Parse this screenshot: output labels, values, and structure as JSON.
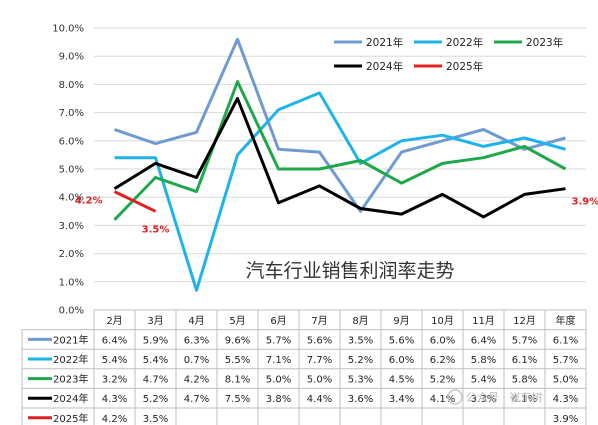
{
  "chart_data": {
    "type": "line",
    "title": "汽车行业销售利润率走势",
    "categories": [
      "2月",
      "3月",
      "4月",
      "5月",
      "6月",
      "7月",
      "8月",
      "9月",
      "10月",
      "11月",
      "12月",
      "年度"
    ],
    "ylim": [
      0,
      10
    ],
    "y_ticks": [
      "0.0%",
      "1.0%",
      "2.0%",
      "3.0%",
      "4.0%",
      "5.0%",
      "6.0%",
      "7.0%",
      "8.0%",
      "9.0%",
      "10.0%"
    ],
    "grid": true,
    "legend_position": "top-right",
    "series": [
      {
        "name": "2021年",
        "color": "#6f9bd1",
        "values": [
          6.4,
          5.9,
          6.3,
          9.6,
          5.7,
          5.6,
          3.5,
          5.6,
          6.0,
          6.4,
          5.7,
          6.1
        ],
        "table": [
          "6.4%",
          "5.9%",
          "6.3%",
          "9.6%",
          "5.7%",
          "5.6%",
          "3.5%",
          "5.6%",
          "6.0%",
          "6.4%",
          "5.7%",
          "6.1%"
        ]
      },
      {
        "name": "2022年",
        "color": "#1eb4ea",
        "values": [
          5.4,
          5.4,
          0.7,
          5.5,
          7.1,
          7.7,
          5.2,
          6.0,
          6.2,
          5.8,
          6.1,
          5.7
        ],
        "table": [
          "5.4%",
          "5.4%",
          "0.7%",
          "5.5%",
          "7.1%",
          "7.7%",
          "5.2%",
          "6.0%",
          "6.2%",
          "5.8%",
          "6.1%",
          "5.7%"
        ]
      },
      {
        "name": "2023年",
        "color": "#1fa84a",
        "values": [
          3.2,
          4.7,
          4.2,
          8.1,
          5.0,
          5.0,
          5.3,
          4.5,
          5.2,
          5.4,
          5.8,
          5.0
        ],
        "table": [
          "3.2%",
          "4.7%",
          "4.2%",
          "8.1%",
          "5.0%",
          "5.0%",
          "5.3%",
          "4.5%",
          "5.2%",
          "5.4%",
          "5.8%",
          "5.0%"
        ]
      },
      {
        "name": "2024年",
        "color": "#000000",
        "values": [
          4.3,
          5.2,
          4.7,
          7.5,
          3.8,
          4.4,
          3.6,
          3.4,
          4.1,
          3.3,
          4.1,
          4.3
        ],
        "table": [
          "4.3%",
          "5.2%",
          "4.7%",
          "7.5%",
          "3.8%",
          "4.4%",
          "3.6%",
          "3.4%",
          "4.1%",
          "3.3%",
          "4.1%",
          "4.3%"
        ]
      },
      {
        "name": "2025年",
        "color": "#e02020",
        "values": [
          4.2,
          3.5,
          null,
          null,
          null,
          null,
          null,
          null,
          null,
          null,
          null,
          3.9
        ],
        "table": [
          "4.2%",
          "3.5%",
          "",
          "",
          "",
          "",
          "",
          "",
          "",
          "",
          "",
          "3.9%"
        ],
        "line_span": 2
      }
    ],
    "annotations": [
      {
        "text": "4.2%",
        "series": "2025年",
        "index": 0
      },
      {
        "text": "3.5%",
        "series": "2025年",
        "index": 1
      },
      {
        "text": "3.9%",
        "series": "2025年",
        "index": 11
      }
    ]
  },
  "watermark": "公众号 · 崔东树"
}
